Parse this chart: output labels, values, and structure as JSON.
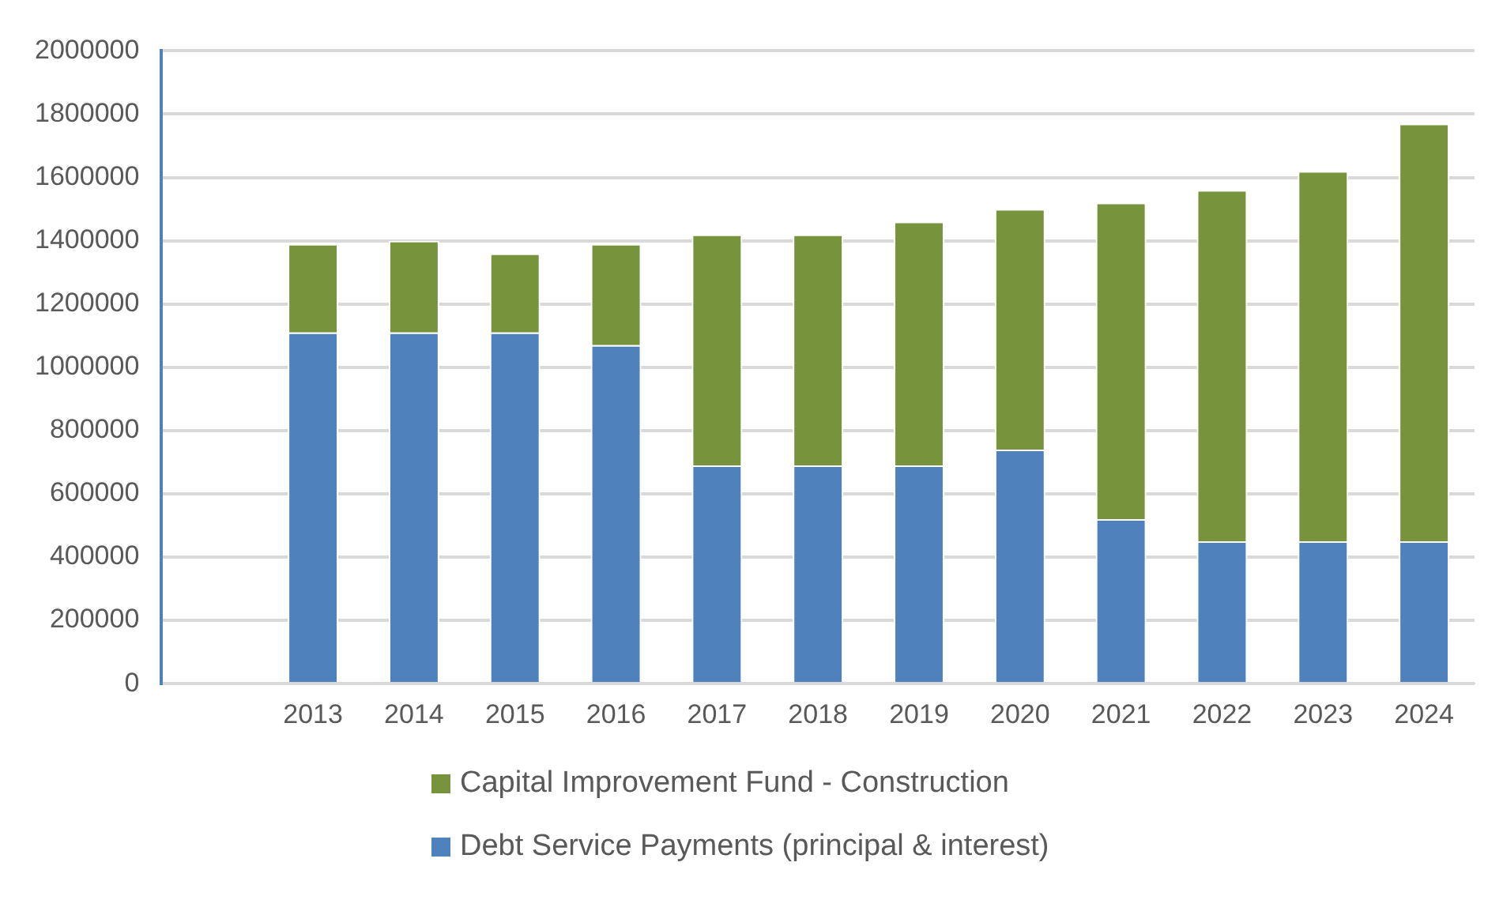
{
  "chart_data": {
    "type": "bar",
    "stacked": true,
    "categories": [
      null,
      "2013",
      "2014",
      "2015",
      "2016",
      "2017",
      "2018",
      "2019",
      "2020",
      "2021",
      "2022",
      "2023",
      "2024"
    ],
    "series": [
      {
        "name": "Debt Service Payments (principal & interest)",
        "color": "#4f81bd",
        "values": [
          null,
          1110000,
          1110000,
          1110000,
          1070000,
          690000,
          690000,
          690000,
          740000,
          520000,
          450000,
          450000,
          450000
        ]
      },
      {
        "name": "Capital Improvement Fund - Construction",
        "color": "#77933c",
        "values": [
          null,
          280000,
          290000,
          250000,
          320000,
          730000,
          730000,
          770000,
          760000,
          1000000,
          1110000,
          1170000,
          1320000
        ]
      }
    ],
    "ylim": [
      0,
      2000000
    ],
    "yticks": [
      0,
      200000,
      400000,
      600000,
      800000,
      1000000,
      1200000,
      1400000,
      1600000,
      1800000,
      2000000
    ],
    "grid": "y",
    "legend": "bottom"
  }
}
